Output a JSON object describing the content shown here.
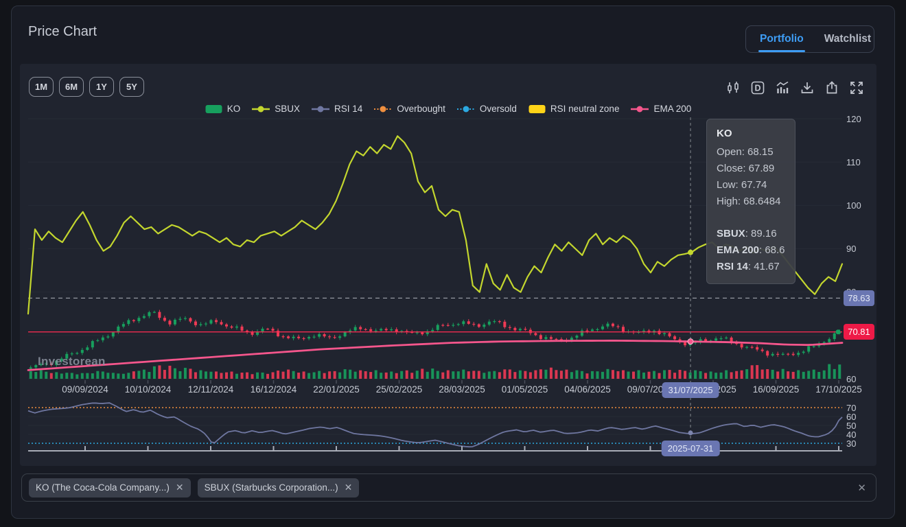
{
  "header": {
    "title": "Price Chart",
    "tabs": [
      {
        "label": "Portfolio",
        "active": true
      },
      {
        "label": "Watchlist",
        "active": false
      }
    ]
  },
  "toolbar": {
    "ranges": [
      "1M",
      "6M",
      "1Y",
      "5Y"
    ],
    "interval_label": "D",
    "icon_names": [
      "candlestick-style-icon",
      "interval-daily-icon",
      "indicators-icon",
      "download-icon",
      "share-icon",
      "fullscreen-icon"
    ]
  },
  "legend": [
    {
      "label": "KO",
      "type": "swatch",
      "color": "#17a05e"
    },
    {
      "label": "SBUX",
      "type": "line-dot",
      "color": "#c3d62e"
    },
    {
      "label": "RSI 14",
      "type": "line-dot",
      "color": "#6f77a1"
    },
    {
      "label": "Overbought",
      "type": "dotted-dot",
      "color": "#ef8f3f"
    },
    {
      "label": "Oversold",
      "type": "dotted-dot",
      "color": "#2ca9e1"
    },
    {
      "label": "RSI neutral zone",
      "type": "swatch",
      "color": "#ffd418"
    },
    {
      "label": "EMA 200",
      "type": "line-dot",
      "color": "#f5568c"
    }
  ],
  "watermark": "Investorean",
  "tooltip": {
    "title": "KO",
    "ohlc_rows": [
      {
        "label": "Open",
        "value": "68.15"
      },
      {
        "label": "Close",
        "value": "67.89"
      },
      {
        "label": "Low",
        "value": "67.74"
      },
      {
        "label": "High",
        "value": "68.6484"
      }
    ],
    "series_rows": [
      {
        "label": "SBUX",
        "value": "89.16"
      },
      {
        "label": "EMA 200",
        "value": "68.6"
      },
      {
        "label": "RSI 14",
        "value": "41.67"
      }
    ]
  },
  "price_axis": {
    "labels": [
      "120",
      "110",
      "100",
      "90",
      "80",
      "60"
    ]
  },
  "rsi_axis": {
    "labels": [
      "70",
      "60",
      "50",
      "40",
      "30"
    ]
  },
  "price_lines": {
    "sbux_prev": {
      "value": "78.63",
      "level": 78.63,
      "style": "dashed",
      "badge_bg": "#6a76b2"
    },
    "ko_last": {
      "value": "70.81",
      "level": 70.81,
      "style": "solid",
      "color": "#ef2b50",
      "badge_bg": "#ee1a47"
    }
  },
  "x_axis": {
    "labels": [
      {
        "label": "09/09/2024"
      },
      {
        "label": "10/10/2024"
      },
      {
        "label": "12/11/2024"
      },
      {
        "label": "16/12/2024"
      },
      {
        "label": "22/01/2025"
      },
      {
        "label": "25/02/2025"
      },
      {
        "label": "28/03/2025"
      },
      {
        "label": "01/05/2025"
      },
      {
        "label": "04/06/2025"
      },
      {
        "label": "09/07/2025"
      },
      {
        "label": "12/08/2025",
        "hidden": true
      },
      {
        "label": "16/09/2025"
      },
      {
        "label": "17/10/2025"
      }
    ],
    "crosshair_badge": "31/07/2025",
    "rsi_crosshair_badge": "2025-07-31"
  },
  "chips": [
    {
      "label": "KO (The Coca-Cola Company...)"
    },
    {
      "label": "SBUX (Starbucks Corporation...)"
    }
  ],
  "chart_data": {
    "type": "mixed",
    "crosshair": {
      "x_frac": 0.8137,
      "date": "2025-07-31",
      "sbux": 89.16,
      "ema200": 68.6,
      "rsi": 41.67,
      "ko_close": 67.89
    },
    "panes": [
      {
        "name": "price",
        "ylim": [
          60,
          121.5
        ],
        "series": [
          {
            "name": "KO",
            "type": "candlestick",
            "color_up": "#17a05e",
            "color_down": "#ef3a55",
            "anchors_close": [
              [
                0,
                62.5
              ],
              [
                0.03,
                64
              ],
              [
                0.06,
                66.5
              ],
              [
                0.09,
                69.5
              ],
              [
                0.11,
                72
              ],
              [
                0.13,
                74
              ],
              [
                0.15,
                75.3
              ],
              [
                0.17,
                73
              ],
              [
                0.19,
                73.8
              ],
              [
                0.21,
                72.5
              ],
              [
                0.23,
                73.2
              ],
              [
                0.25,
                71.8
              ],
              [
                0.27,
                70.5
              ],
              [
                0.29,
                71.5
              ],
              [
                0.31,
                70
              ],
              [
                0.33,
                69
              ],
              [
                0.35,
                70.2
              ],
              [
                0.37,
                69.3
              ],
              [
                0.39,
                70.8
              ],
              [
                0.41,
                71.8
              ],
              [
                0.43,
                70.9
              ],
              [
                0.45,
                71.5
              ],
              [
                0.47,
                70.3
              ],
              [
                0.49,
                71
              ],
              [
                0.51,
                72.3
              ],
              [
                0.53,
                73
              ],
              [
                0.55,
                72.2
              ],
              [
                0.57,
                73.3
              ],
              [
                0.59,
                72
              ],
              [
                0.61,
                71
              ],
              [
                0.63,
                69.8
              ],
              [
                0.65,
                68.7
              ],
              [
                0.67,
                69.6
              ],
              [
                0.69,
                71.2
              ],
              [
                0.71,
                72.4
              ],
              [
                0.73,
                71.6
              ],
              [
                0.75,
                70.4
              ],
              [
                0.77,
                71.3
              ],
              [
                0.79,
                69.5
              ],
              [
                0.814,
                67.9
              ],
              [
                0.83,
                68.8
              ],
              [
                0.85,
                69.5
              ],
              [
                0.87,
                68.3
              ],
              [
                0.89,
                67
              ],
              [
                0.91,
                66
              ],
              [
                0.93,
                65.3
              ],
              [
                0.95,
                66.2
              ],
              [
                0.97,
                67.5
              ],
              [
                0.985,
                69.3
              ],
              [
                1,
                70.8
              ]
            ]
          },
          {
            "name": "SBUX",
            "type": "line",
            "color": "#c3d62e",
            "values": [
              75,
              94.5,
              92,
              94,
              92.5,
              91.5,
              94,
              96.5,
              98.5,
              95.5,
              92,
              89.5,
              90.5,
              93,
              96,
              97.5,
              96,
              94.5,
              95,
              93.5,
              94.5,
              95.5,
              95,
              94,
              93,
              94,
              93.5,
              92.5,
              91.5,
              92.5,
              91,
              90.5,
              92,
              91.5,
              93,
              93.5,
              94,
              93,
              94,
              95,
              96.5,
              95.5,
              94.5,
              96,
              98,
              101,
              105,
              109.5,
              112.5,
              111.5,
              113.5,
              112,
              114,
              113,
              116,
              114.5,
              112,
              105.5,
              103,
              104.5,
              99,
              97.5,
              99,
              98.5,
              92,
              81.5,
              80,
              86.5,
              82,
              80.5,
              84,
              81,
              80,
              83.5,
              86,
              84.5,
              88,
              91,
              89.5,
              91.5,
              90,
              88.5,
              92,
              93.5,
              91,
              92.5,
              91.5,
              93,
              92,
              90,
              86.5,
              84.5,
              87,
              86,
              87.5,
              88.5,
              88.8,
              89.2,
              90.3,
              91,
              91.5,
              90,
              91,
              90.5,
              89.5,
              90.5,
              89,
              90,
              89.5,
              90.5,
              89,
              87,
              85,
              83,
              81,
              79.5,
              82,
              83.5,
              82.5,
              86.5
            ]
          },
          {
            "name": "EMA 200",
            "type": "line",
            "color": "#f5568c",
            "points": [
              [
                0,
                62
              ],
              [
                0.09,
                63.2
              ],
              [
                0.18,
                64.4
              ],
              [
                0.27,
                65.6
              ],
              [
                0.36,
                66.8
              ],
              [
                0.45,
                67.7
              ],
              [
                0.52,
                68.3
              ],
              [
                0.58,
                68.6
              ],
              [
                0.65,
                68.75
              ],
              [
                0.72,
                68.8
              ],
              [
                0.78,
                68.7
              ],
              [
                0.814,
                68.6
              ],
              [
                0.86,
                68.45
              ],
              [
                0.9,
                68.2
              ],
              [
                0.93,
                67.9
              ],
              [
                0.96,
                67.8
              ],
              [
                1,
                68.3
              ]
            ]
          }
        ],
        "volume": {
          "profile": [
            0.5,
            0.35,
            0.3,
            0.45,
            0.3,
            0.55,
            0.9,
            0.7,
            0.5,
            0.4,
            0.35,
            0.35,
            0.55,
            0.4,
            0.45,
            0.6,
            0.5,
            0.4,
            0.5,
            0.65,
            0.5,
            0.55,
            0.45,
            0.6,
            0.5,
            0.7,
            0.55,
            0.45,
            0.6,
            0.5,
            0.45,
            0.55,
            0.5,
            0.4,
            0.5,
            0.95,
            0.6,
            0.5,
            0.55,
            1
          ]
        }
      },
      {
        "name": "rsi",
        "ylim": [
          25,
          77
        ],
        "series": [
          {
            "name": "RSI 14",
            "type": "line",
            "color": "#6f77a1",
            "points": [
              [
                0,
                66
              ],
              [
                0.008,
                63
              ],
              [
                0.016,
                65
              ],
              [
                0.03,
                68
              ],
              [
                0.05,
                71
              ],
              [
                0.065,
                74
              ],
              [
                0.08,
                75
              ],
              [
                0.09,
                74
              ],
              [
                0.1,
                75
              ],
              [
                0.11,
                71
              ],
              [
                0.12,
                66
              ],
              [
                0.13,
                68
              ],
              [
                0.14,
                64
              ],
              [
                0.15,
                66
              ],
              [
                0.16,
                61
              ],
              [
                0.17,
                58
              ],
              [
                0.18,
                60
              ],
              [
                0.19,
                55
              ],
              [
                0.2,
                50
              ],
              [
                0.21,
                46
              ],
              [
                0.218,
                40
              ],
              [
                0.227,
                28.5
              ],
              [
                0.236,
                36
              ],
              [
                0.245,
                43
              ],
              [
                0.255,
                45
              ],
              [
                0.265,
                42
              ],
              [
                0.275,
                44
              ],
              [
                0.285,
                41
              ],
              [
                0.3,
                43
              ],
              [
                0.315,
                40
              ],
              [
                0.33,
                44
              ],
              [
                0.345,
                47
              ],
              [
                0.36,
                48
              ],
              [
                0.37,
                46
              ],
              [
                0.38,
                48
              ],
              [
                0.39,
                45
              ],
              [
                0.4,
                42
              ],
              [
                0.42,
                39
              ],
              [
                0.44,
                36
              ],
              [
                0.46,
                33
              ],
              [
                0.48,
                31
              ],
              [
                0.5,
                33
              ],
              [
                0.515,
                30
              ],
              [
                0.53,
                28
              ],
              [
                0.545,
                27
              ],
              [
                0.555,
                30
              ],
              [
                0.57,
                36
              ],
              [
                0.585,
                42
              ],
              [
                0.6,
                45
              ],
              [
                0.61,
                43
              ],
              [
                0.62,
                45
              ],
              [
                0.63,
                42
              ],
              [
                0.645,
                44
              ],
              [
                0.66,
                41
              ],
              [
                0.675,
                43
              ],
              [
                0.69,
                46
              ],
              [
                0.7,
                44
              ],
              [
                0.715,
                47
              ],
              [
                0.73,
                45
              ],
              [
                0.745,
                48
              ],
              [
                0.755,
                46
              ],
              [
                0.77,
                49
              ],
              [
                0.78,
                46
              ],
              [
                0.79,
                44
              ],
              [
                0.8,
                42
              ],
              [
                0.814,
                41.67
              ],
              [
                0.825,
                43
              ],
              [
                0.84,
                47
              ],
              [
                0.855,
                50
              ],
              [
                0.87,
                52
              ],
              [
                0.88,
                49
              ],
              [
                0.89,
                51
              ],
              [
                0.9,
                48
              ],
              [
                0.915,
                50
              ],
              [
                0.93,
                47
              ],
              [
                0.94,
                44
              ],
              [
                0.95,
                42
              ],
              [
                0.96,
                39
              ],
              [
                0.97,
                38
              ],
              [
                0.98,
                40
              ],
              [
                0.985,
                42
              ],
              [
                0.99,
                46
              ],
              [
                0.995,
                53
              ],
              [
                0.998,
                61
              ],
              [
                1,
                59
              ]
            ]
          },
          {
            "name": "Overbought",
            "type": "hline",
            "value": 70,
            "color": "#ef8f3f"
          },
          {
            "name": "Oversold",
            "type": "hline",
            "value": 30,
            "color": "#2ca9e1"
          }
        ]
      }
    ]
  }
}
